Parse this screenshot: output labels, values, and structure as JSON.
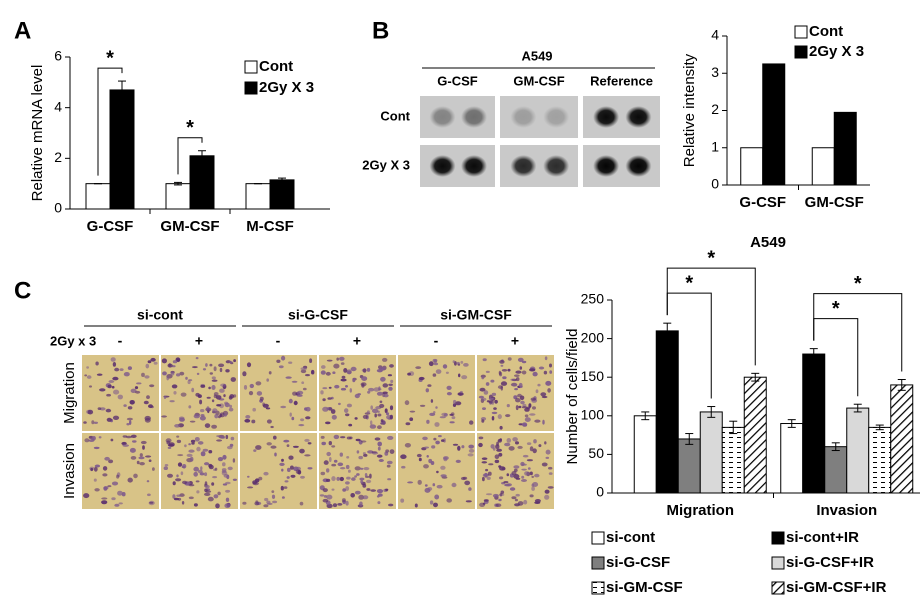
{
  "panel_labels": [
    "A",
    "B",
    "C"
  ],
  "chart_data": [
    {
      "type": "bar",
      "ylabel": "Relative mRNA level",
      "categories": [
        "G-CSF",
        "GM-CSF",
        "M-CSF"
      ],
      "series": [
        {
          "name": "Cont",
          "color": "#ffffff",
          "values": [
            1,
            1,
            1
          ],
          "errors": [
            0,
            0.05,
            0
          ]
        },
        {
          "name": "2Gy X 3",
          "color": "#000000",
          "values": [
            4.7,
            2.1,
            1.15
          ],
          "errors": [
            0.35,
            0.2,
            0.07
          ]
        }
      ],
      "ylim": [
        0,
        6
      ],
      "yticks": [
        0,
        2,
        4,
        6
      ],
      "significance": [
        {
          "category": "G-CSF",
          "text": "*"
        },
        {
          "category": "GM-CSF",
          "text": "*"
        }
      ]
    },
    {
      "type": "bar",
      "ylabel": "Relative intensity",
      "categories": [
        "G-CSF",
        "GM-CSF"
      ],
      "series": [
        {
          "name": "Cont",
          "color": "#ffffff",
          "values": [
            1,
            1
          ]
        },
        {
          "name": "2Gy X 3",
          "color": "#000000",
          "values": [
            3.25,
            1.95
          ]
        }
      ],
      "ylim": [
        0,
        4
      ],
      "yticks": [
        0,
        1,
        2,
        3,
        4
      ]
    },
    {
      "type": "bar",
      "title": "A549",
      "ylabel": "Number of cells/field",
      "categories": [
        "Migration",
        "Invasion"
      ],
      "series": [
        {
          "name": "si-cont",
          "color": "#ffffff",
          "values": [
            100,
            90
          ],
          "errors": [
            5,
            5
          ]
        },
        {
          "name": "si-cont+IR",
          "color": "#000000",
          "values": [
            210,
            180
          ],
          "errors": [
            10,
            7
          ]
        },
        {
          "name": "si-G-CSF",
          "color": "#7f7f7f",
          "values": [
            70,
            60
          ],
          "errors": [
            7,
            5
          ]
        },
        {
          "name": "si-G-CSF+IR",
          "color": "#d9d9d9",
          "values": [
            105,
            110
          ],
          "errors": [
            7,
            5
          ]
        },
        {
          "name": "si-GM-CSF",
          "color": "#ffffff",
          "pattern": "dash",
          "values": [
            85,
            85
          ],
          "errors": [
            8,
            3
          ]
        },
        {
          "name": "si-GM-CSF+IR",
          "color": "#ffffff",
          "pattern": "hatch",
          "values": [
            150,
            140
          ],
          "errors": [
            5,
            7
          ]
        }
      ],
      "ylim": [
        0,
        250
      ],
      "yticks": [
        0,
        50,
        100,
        150,
        200,
        250
      ],
      "significance": [
        {
          "category": "Migration",
          "from": "si-cont+IR",
          "to": "si-G-CSF+IR",
          "text": "*"
        },
        {
          "category": "Migration",
          "from": "si-cont+IR",
          "to": "si-GM-CSF+IR",
          "text": "*"
        },
        {
          "category": "Invasion",
          "from": "si-cont+IR",
          "to": "si-G-CSF+IR",
          "text": "*"
        },
        {
          "category": "Invasion",
          "from": "si-cont+IR",
          "to": "si-GM-CSF+IR",
          "text": "*"
        }
      ]
    }
  ],
  "blot": {
    "title": "A549",
    "columns": [
      "G-CSF",
      "GM-CSF",
      "Reference"
    ],
    "rows": [
      "Cont",
      "2Gy X 3"
    ]
  },
  "micrographs": {
    "treatment_label": "2Gy x 3",
    "groups": [
      "si-cont",
      "si-G-CSF",
      "si-GM-CSF"
    ],
    "conditions": [
      "-",
      "+",
      "-",
      "+",
      "-",
      "+"
    ],
    "rows": [
      "Migration",
      "Invasion"
    ]
  }
}
